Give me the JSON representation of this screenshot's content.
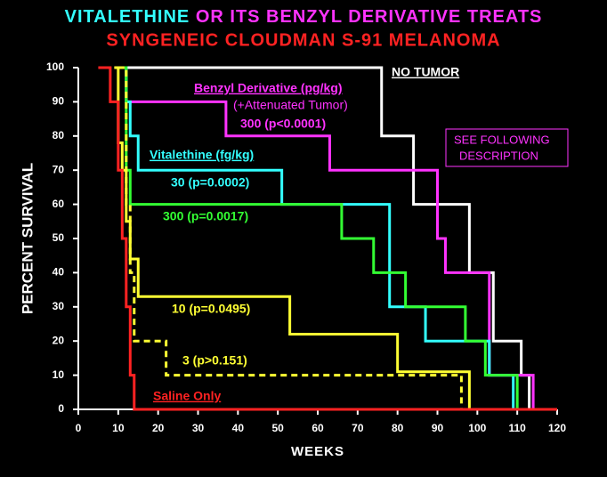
{
  "chart_data": {
    "type": "step",
    "title": [
      "VITALETHINE",
      "OR ITS BENZYL DERIVATIVE TREATS"
    ],
    "subtitle": "SYNGENEIC CLOUDMAN S-91 MELANOMA",
    "xlabel": "WEEKS",
    "ylabel": "PERCENT SURVIVAL",
    "xlim": [
      0,
      120
    ],
    "ylim": [
      0,
      100
    ],
    "xticks": [
      0,
      10,
      20,
      30,
      40,
      50,
      60,
      70,
      80,
      90,
      100,
      110,
      120
    ],
    "yticks": [
      0,
      10,
      20,
      30,
      40,
      50,
      60,
      70,
      80,
      90,
      100
    ],
    "annotations": [
      "Benzyl Derivative (pg/kg)",
      "(+Attenuated Tumor)",
      "Vitalethine (fg/kg)",
      "SEE FOLLOWING",
      "DESCRIPTION"
    ],
    "series": [
      {
        "name": "NO TUMOR",
        "color": "#ffffff",
        "x": [
          12,
          76,
          84,
          98,
          104,
          111,
          113
        ],
        "values": [
          100,
          80,
          60,
          40,
          20,
          10,
          0
        ]
      },
      {
        "name": "300 (p<0.0001)",
        "color": "#ff33ff",
        "x": [
          11,
          12,
          37,
          63,
          90,
          92,
          103,
          114
        ],
        "values": [
          100,
          90,
          80,
          70,
          50,
          40,
          10,
          0
        ]
      },
      {
        "name": "30 (p=0.0002)",
        "color": "#33ffff",
        "x": [
          11,
          12,
          13,
          15,
          51,
          78,
          87,
          103,
          109
        ],
        "values": [
          100,
          90,
          80,
          70,
          60,
          30,
          20,
          10,
          0
        ]
      },
      {
        "name": "300 (p=0.0017)",
        "color": "#33ff33",
        "x": [
          11,
          12,
          13,
          66,
          74,
          82,
          97,
          102,
          110
        ],
        "values": [
          100,
          70,
          60,
          50,
          40,
          30,
          20,
          10,
          0
        ]
      },
      {
        "name": "10 (p=0.0495)",
        "color": "#ffff33",
        "x": [
          9,
          10,
          11,
          12,
          13,
          15,
          53,
          80,
          98
        ],
        "values": [
          100,
          78,
          70,
          55,
          44,
          33,
          22,
          11,
          0
        ]
      },
      {
        "name": "3 (p>0.151)",
        "color": "#ffff33",
        "dash": true,
        "x": [
          10,
          12,
          13,
          14,
          22,
          96
        ],
        "values": [
          100,
          60,
          40,
          20,
          10,
          0
        ]
      },
      {
        "name": "Saline Only",
        "color": "#ff2222",
        "x": [
          5,
          8,
          10,
          11,
          12,
          13,
          14,
          120
        ],
        "values": [
          100,
          90,
          70,
          50,
          30,
          10,
          0,
          0
        ]
      }
    ]
  }
}
